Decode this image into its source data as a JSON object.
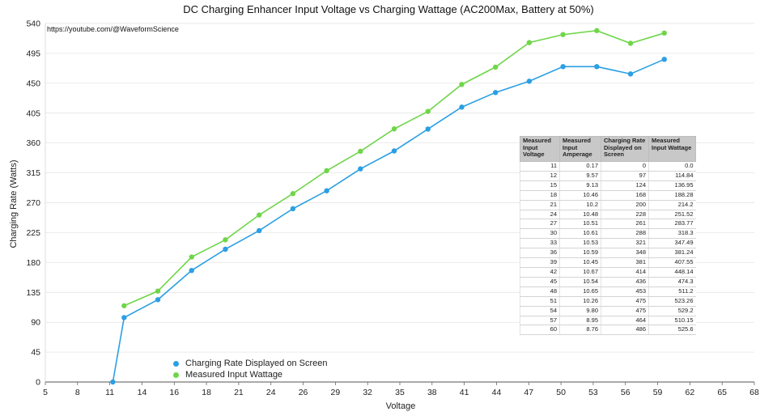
{
  "chart_data": {
    "type": "line",
    "title": "DC Charging Enhancer Input Voltage vs Charging Wattage (AC200Max, Battery at 50%)",
    "annotation": "https://youtube.com/@WaveformScience",
    "xlabel": "Voltage",
    "ylabel": "Charging Rate (Watts)",
    "xlim": [
      5,
      68
    ],
    "ylim": [
      0,
      540
    ],
    "x_ticks": [
      "5",
      "8",
      "11",
      "14",
      "16",
      "18",
      "21",
      "24",
      "26",
      "29",
      "32",
      "35",
      "38",
      "41",
      "44",
      "47",
      "50",
      "53",
      "56",
      "59",
      "62",
      "65",
      "68"
    ],
    "y_ticks": [
      0,
      45,
      90,
      135,
      180,
      225,
      270,
      315,
      360,
      405,
      450,
      495,
      540
    ],
    "grid": "horizontal",
    "legend_position": "bottom-left",
    "series": [
      {
        "name": "Charging Rate Displayed on Screen",
        "color": "#2b9fe3",
        "x": [
          11,
          12,
          15,
          18,
          21,
          24,
          27,
          30,
          33,
          36,
          39,
          42,
          45,
          48,
          51,
          54,
          57,
          60
        ],
        "values": [
          0,
          97,
          124,
          168,
          200,
          228,
          261,
          288,
          321,
          348,
          381,
          414,
          436,
          453,
          475,
          475,
          464,
          486
        ]
      },
      {
        "name": "Measured Input Wattage",
        "color": "#6fd64a",
        "x": [
          12,
          15,
          18,
          21,
          24,
          27,
          30,
          33,
          36,
          39,
          42,
          45,
          48,
          51,
          54,
          57,
          60
        ],
        "values": [
          114.84,
          136.95,
          188.28,
          214.2,
          251.52,
          283.77,
          318.3,
          347.49,
          381.24,
          407.55,
          448.14,
          474.3,
          511.2,
          523.26,
          529.2,
          510.15,
          525.6
        ]
      }
    ],
    "table": {
      "headers": [
        "Measured Input Voltage",
        "Measured Input Amperage",
        "Charging Rate Displayed on Screen",
        "Measured Input Wattage"
      ],
      "rows": [
        [
          "11",
          "0.17",
          "0",
          "0.0"
        ],
        [
          "12",
          "9.57",
          "97",
          "114.84"
        ],
        [
          "15",
          "9.13",
          "124",
          "136.95"
        ],
        [
          "18",
          "10.46",
          "168",
          "188.28"
        ],
        [
          "21",
          "10.2",
          "200",
          "214.2"
        ],
        [
          "24",
          "10.48",
          "228",
          "251.52"
        ],
        [
          "27",
          "10.51",
          "261",
          "283.77"
        ],
        [
          "30",
          "10.61",
          "288",
          "318.3"
        ],
        [
          "33",
          "10.53",
          "321",
          "347.49"
        ],
        [
          "36",
          "10.59",
          "348",
          "381.24"
        ],
        [
          "39",
          "10.45",
          "381",
          "407.55"
        ],
        [
          "42",
          "10.67",
          "414",
          "448.14"
        ],
        [
          "45",
          "10.54",
          "436",
          "474.3"
        ],
        [
          "48",
          "10.65",
          "453",
          "511.2"
        ],
        [
          "51",
          "10.26",
          "475",
          "523.26"
        ],
        [
          "54",
          "9.80",
          "475",
          "529.2"
        ],
        [
          "57",
          "8.95",
          "464",
          "510.15"
        ],
        [
          "60",
          "8.76",
          "486",
          "525.6"
        ]
      ]
    }
  }
}
